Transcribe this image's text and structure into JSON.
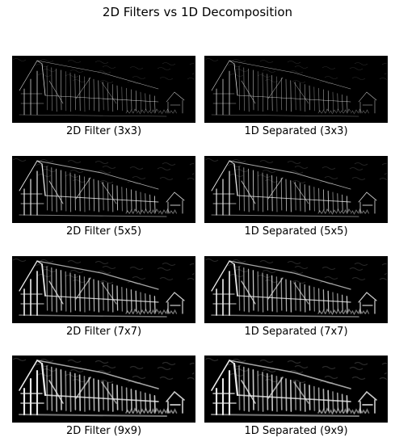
{
  "figure": {
    "title": "2D Filters vs 1D Decomposition"
  },
  "panels": [
    {
      "caption": "2D Filter (3x3)",
      "kernel_size": 3
    },
    {
      "caption": "1D Separated (3x3)",
      "kernel_size": 3
    },
    {
      "caption": "2D Filter (5x5)",
      "kernel_size": 5
    },
    {
      "caption": "1D Separated (5x5)",
      "kernel_size": 5
    },
    {
      "caption": "2D Filter (7x7)",
      "kernel_size": 7
    },
    {
      "caption": "1D Separated (7x7)",
      "kernel_size": 7
    },
    {
      "caption": "2D Filter (9x9)",
      "kernel_size": 9
    },
    {
      "caption": "1D Separated (9x9)",
      "kernel_size": 9
    }
  ]
}
